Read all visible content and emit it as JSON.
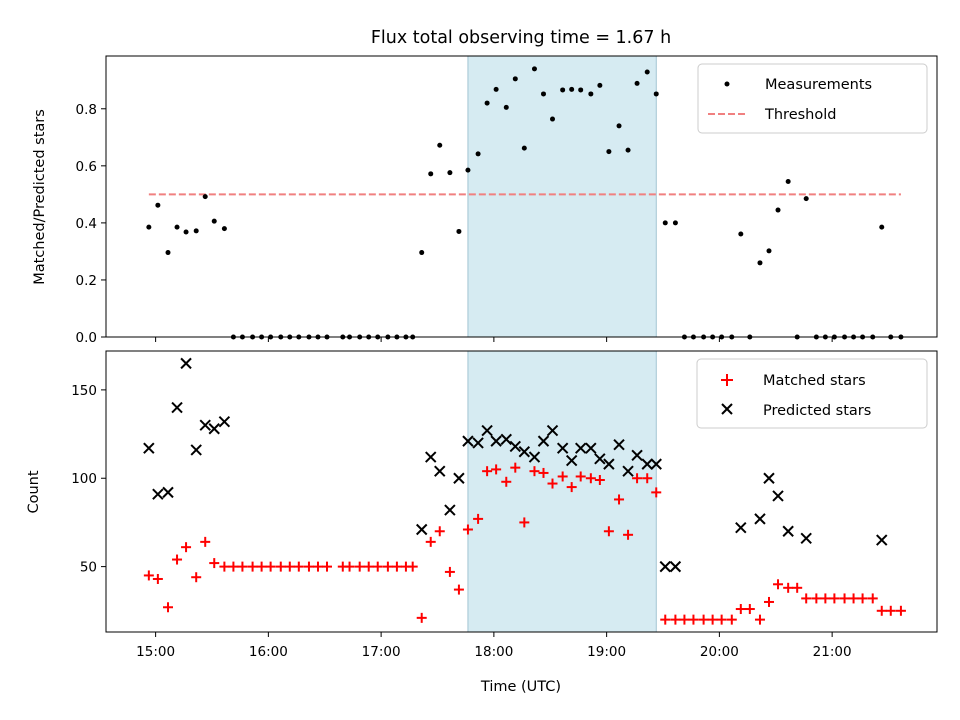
{
  "chart_data": {
    "title": "Flux total observing time = 1.67 h",
    "xlabel": "Time (UTC)",
    "x_unit": "hours (UTC)",
    "xlim": [
      14.56,
      21.93
    ],
    "xticks": [
      {
        "value": 15,
        "label": "15:00"
      },
      {
        "value": 16,
        "label": "16:00"
      },
      {
        "value": 17,
        "label": "17:00"
      },
      {
        "value": 18,
        "label": "18:00"
      },
      {
        "value": 19,
        "label": "19:00"
      },
      {
        "value": 20,
        "label": "20:00"
      },
      {
        "value": 21,
        "label": "21:00"
      }
    ],
    "highlight_span": {
      "x0": 17.77,
      "x1": 19.44,
      "color": "#add8e6"
    },
    "subplots": [
      {
        "type": "scatter",
        "ylabel": "Matched/Predicted stars",
        "ylim": [
          0,
          0.985
        ],
        "yticks": [
          0,
          0.2,
          0.4,
          0.6,
          0.8
        ],
        "ytick_labels": [
          "0.0",
          "0.2",
          "0.4",
          "0.6",
          "0.8"
        ],
        "legend": "top-right",
        "series": [
          {
            "name": "Measurements",
            "marker": "dot",
            "color": "#000000",
            "points": [
              [
                14.94,
                0.385
              ],
              [
                15.02,
                0.462
              ],
              [
                15.11,
                0.296
              ],
              [
                15.19,
                0.385
              ],
              [
                15.27,
                0.368
              ],
              [
                15.36,
                0.372
              ],
              [
                15.44,
                0.492
              ],
              [
                15.52,
                0.406
              ],
              [
                15.61,
                0.38
              ],
              [
                15.69,
                0
              ],
              [
                15.77,
                0
              ],
              [
                15.86,
                0
              ],
              [
                15.94,
                0
              ],
              [
                16.02,
                0
              ],
              [
                16.11,
                0
              ],
              [
                16.19,
                0
              ],
              [
                16.27,
                0
              ],
              [
                16.36,
                0
              ],
              [
                16.44,
                0
              ],
              [
                16.52,
                0
              ],
              [
                16.66,
                0
              ],
              [
                16.72,
                0
              ],
              [
                16.81,
                0
              ],
              [
                16.89,
                0
              ],
              [
                16.97,
                0
              ],
              [
                17.06,
                0
              ],
              [
                17.14,
                0
              ],
              [
                17.22,
                0
              ],
              [
                17.28,
                0
              ],
              [
                17.36,
                0.296
              ],
              [
                17.44,
                0.572
              ],
              [
                17.52,
                0.672
              ],
              [
                17.61,
                0.576
              ],
              [
                17.69,
                0.37
              ],
              [
                17.77,
                0.585
              ],
              [
                17.86,
                0.642
              ],
              [
                17.94,
                0.82
              ],
              [
                18.02,
                0.868
              ],
              [
                18.11,
                0.805
              ],
              [
                18.19,
                0.905
              ],
              [
                18.27,
                0.662
              ],
              [
                18.36,
                0.94
              ],
              [
                18.44,
                0.852
              ],
              [
                18.52,
                0.764
              ],
              [
                18.61,
                0.866
              ],
              [
                18.69,
                0.868
              ],
              [
                18.77,
                0.866
              ],
              [
                18.86,
                0.852
              ],
              [
                18.94,
                0.882
              ],
              [
                19.02,
                0.65
              ],
              [
                19.11,
                0.74
              ],
              [
                19.19,
                0.655
              ],
              [
                19.27,
                0.889
              ],
              [
                19.36,
                0.929
              ],
              [
                19.44,
                0.852
              ],
              [
                19.52,
                0.4
              ],
              [
                19.61,
                0.4
              ],
              [
                19.69,
                0
              ],
              [
                19.77,
                0
              ],
              [
                19.86,
                0
              ],
              [
                19.94,
                0
              ],
              [
                20.02,
                0
              ],
              [
                20.11,
                0
              ],
              [
                20.27,
                0
              ],
              [
                20.19,
                0.361
              ],
              [
                20.36,
                0.26
              ],
              [
                20.44,
                0.302
              ],
              [
                20.52,
                0.445
              ],
              [
                20.61,
                0.545
              ],
              [
                20.69,
                0
              ],
              [
                20.77,
                0.485
              ],
              [
                20.86,
                0
              ],
              [
                20.94,
                0
              ],
              [
                21.02,
                0
              ],
              [
                21.11,
                0
              ],
              [
                21.19,
                0
              ],
              [
                21.27,
                0
              ],
              [
                21.36,
                0
              ],
              [
                21.44,
                0.385
              ],
              [
                21.52,
                0
              ],
              [
                21.61,
                0
              ]
            ]
          },
          {
            "name": "Threshold",
            "marker": "dashed-line",
            "color": "#f08080",
            "x": [
              14.94,
              21.61
            ],
            "values": [
              0.5,
              0.5
            ]
          }
        ]
      },
      {
        "type": "scatter",
        "ylabel": "Count",
        "ylim": [
          13,
          172
        ],
        "yticks": [
          50,
          100,
          150
        ],
        "ytick_labels": [
          "50",
          "100",
          "150"
        ],
        "legend": "top-right",
        "series": [
          {
            "name": "Matched stars",
            "marker": "plus",
            "color": "#ff0000",
            "points": [
              [
                14.94,
                45
              ],
              [
                15.02,
                43
              ],
              [
                15.11,
                27
              ],
              [
                15.19,
                54
              ],
              [
                15.27,
                61
              ],
              [
                15.36,
                44
              ],
              [
                15.44,
                64
              ],
              [
                15.52,
                52
              ],
              [
                15.61,
                50
              ],
              [
                15.69,
                50
              ],
              [
                15.77,
                50
              ],
              [
                15.86,
                50
              ],
              [
                15.94,
                50
              ],
              [
                16.02,
                50
              ],
              [
                16.11,
                50
              ],
              [
                16.19,
                50
              ],
              [
                16.27,
                50
              ],
              [
                16.36,
                50
              ],
              [
                16.44,
                50
              ],
              [
                16.52,
                50
              ],
              [
                16.66,
                50
              ],
              [
                16.72,
                50
              ],
              [
                16.81,
                50
              ],
              [
                16.89,
                50
              ],
              [
                16.97,
                50
              ],
              [
                17.06,
                50
              ],
              [
                17.14,
                50
              ],
              [
                17.22,
                50
              ],
              [
                17.28,
                50
              ],
              [
                17.36,
                21
              ],
              [
                17.44,
                64
              ],
              [
                17.52,
                70
              ],
              [
                17.61,
                47
              ],
              [
                17.69,
                37
              ],
              [
                17.77,
                71
              ],
              [
                17.86,
                77
              ],
              [
                17.94,
                104
              ],
              [
                18.02,
                105
              ],
              [
                18.11,
                98
              ],
              [
                18.19,
                106
              ],
              [
                18.27,
                75
              ],
              [
                18.36,
                104
              ],
              [
                18.44,
                103
              ],
              [
                18.52,
                97
              ],
              [
                18.61,
                101
              ],
              [
                18.69,
                95
              ],
              [
                18.77,
                101
              ],
              [
                18.86,
                100
              ],
              [
                18.94,
                99
              ],
              [
                19.02,
                70
              ],
              [
                19.11,
                88
              ],
              [
                19.19,
                68
              ],
              [
                19.27,
                100
              ],
              [
                19.36,
                100
              ],
              [
                19.44,
                92
              ],
              [
                19.52,
                20
              ],
              [
                19.61,
                20
              ],
              [
                19.69,
                20
              ],
              [
                19.77,
                20
              ],
              [
                19.86,
                20
              ],
              [
                19.94,
                20
              ],
              [
                20.02,
                20
              ],
              [
                20.11,
                20
              ],
              [
                20.19,
                26
              ],
              [
                20.27,
                26
              ],
              [
                20.36,
                20
              ],
              [
                20.44,
                30
              ],
              [
                20.52,
                40
              ],
              [
                20.61,
                38
              ],
              [
                20.69,
                38
              ],
              [
                20.77,
                32
              ],
              [
                20.86,
                32
              ],
              [
                20.94,
                32
              ],
              [
                21.02,
                32
              ],
              [
                21.11,
                32
              ],
              [
                21.19,
                32
              ],
              [
                21.27,
                32
              ],
              [
                21.36,
                32
              ],
              [
                21.44,
                25
              ],
              [
                21.52,
                25
              ],
              [
                21.61,
                25
              ]
            ]
          },
          {
            "name": "Predicted stars",
            "marker": "x",
            "color": "#000000",
            "points": [
              [
                14.94,
                117
              ],
              [
                15.02,
                91
              ],
              [
                15.11,
                92
              ],
              [
                15.19,
                140
              ],
              [
                15.27,
                165
              ],
              [
                15.36,
                116
              ],
              [
                15.44,
                130
              ],
              [
                15.52,
                128
              ],
              [
                15.61,
                132
              ],
              [
                17.36,
                71
              ],
              [
                17.44,
                112
              ],
              [
                17.52,
                104
              ],
              [
                17.61,
                82
              ],
              [
                17.69,
                100
              ],
              [
                17.77,
                121
              ],
              [
                17.86,
                120
              ],
              [
                17.94,
                127
              ],
              [
                18.02,
                121
              ],
              [
                18.11,
                122
              ],
              [
                18.19,
                118
              ],
              [
                18.27,
                115
              ],
              [
                18.36,
                112
              ],
              [
                18.44,
                121
              ],
              [
                18.52,
                127
              ],
              [
                18.61,
                117
              ],
              [
                18.69,
                110
              ],
              [
                18.77,
                117
              ],
              [
                18.86,
                117
              ],
              [
                18.94,
                111
              ],
              [
                19.02,
                108
              ],
              [
                19.11,
                119
              ],
              [
                19.19,
                104
              ],
              [
                19.27,
                113
              ],
              [
                19.36,
                108
              ],
              [
                19.44,
                108
              ],
              [
                19.52,
                50
              ],
              [
                19.61,
                50
              ],
              [
                20.19,
                72
              ],
              [
                20.36,
                77
              ],
              [
                20.44,
                100
              ],
              [
                20.52,
                90
              ],
              [
                20.61,
                70
              ],
              [
                20.77,
                66
              ],
              [
                21.44,
                65
              ]
            ]
          }
        ]
      }
    ]
  }
}
